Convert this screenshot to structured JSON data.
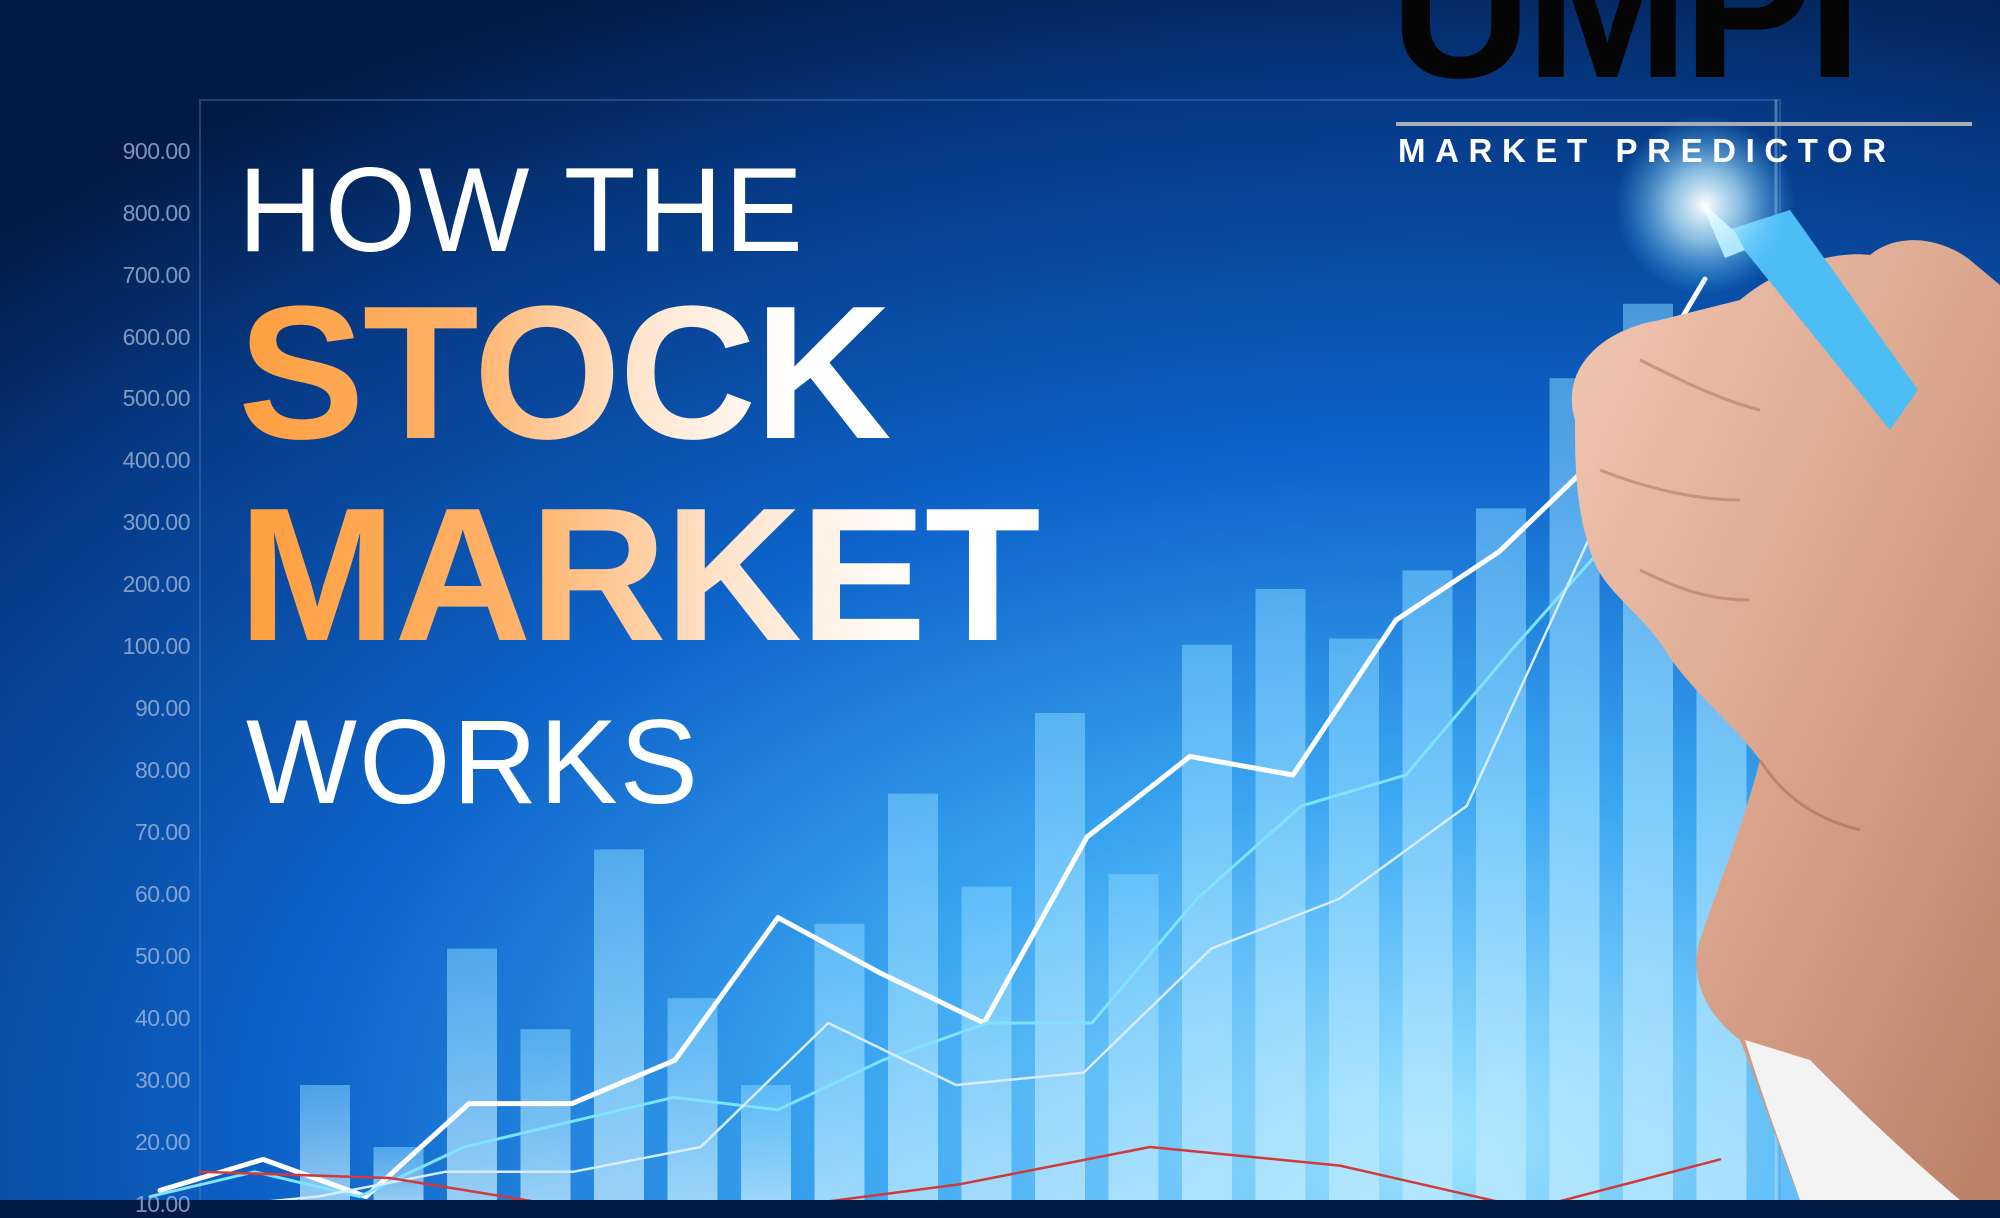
{
  "headline": {
    "line1": "HOW THE",
    "line2": "STOCK",
    "line3": "MARKET",
    "line4": "WORKS"
  },
  "logo": {
    "mark": "UMPI",
    "tagline": "MARKET PREDICTOR"
  },
  "chart_data": {
    "type": "bar",
    "y_tick_labels": [
      "900.00",
      "800.00",
      "700.00",
      "600.00",
      "500.00",
      "400.00",
      "300.00",
      "200.00",
      "100.00",
      "90.00",
      "80.00",
      "70.00",
      "60.00",
      "50.00",
      "40.00",
      "30.00",
      "20.00",
      "10.00"
    ],
    "bars": [
      30,
      20,
      52,
      39,
      68,
      44,
      30,
      56,
      77,
      62,
      90,
      64,
      110,
      200,
      120,
      230,
      330,
      540,
      660,
      500
    ],
    "series": [
      {
        "color": "#ffffff",
        "values": [
          13,
          18,
          12,
          27,
          27,
          34,
          57,
          48,
          40,
          70,
          83,
          80,
          150,
          260,
          420,
          700
        ]
      },
      {
        "color": "#7fe3ff",
        "values": [
          12,
          16,
          12,
          20,
          24,
          28,
          26,
          34,
          40,
          40,
          60,
          75,
          80,
          100,
          290,
          480
        ]
      },
      {
        "color": "#d8ecff",
        "values": [
          10,
          12,
          16,
          16,
          20,
          40,
          30,
          32,
          52,
          60,
          75,
          300,
          400
        ]
      },
      {
        "color": "#d03a3a",
        "values": [
          16,
          15,
          10,
          10,
          14,
          20,
          17,
          10,
          18
        ]
      }
    ],
    "colors": {
      "background_top": "#021a44",
      "background_mid": "#0b63c8",
      "background_light": "#6fd0ff",
      "accent_orange": "#ff9f3f"
    }
  }
}
